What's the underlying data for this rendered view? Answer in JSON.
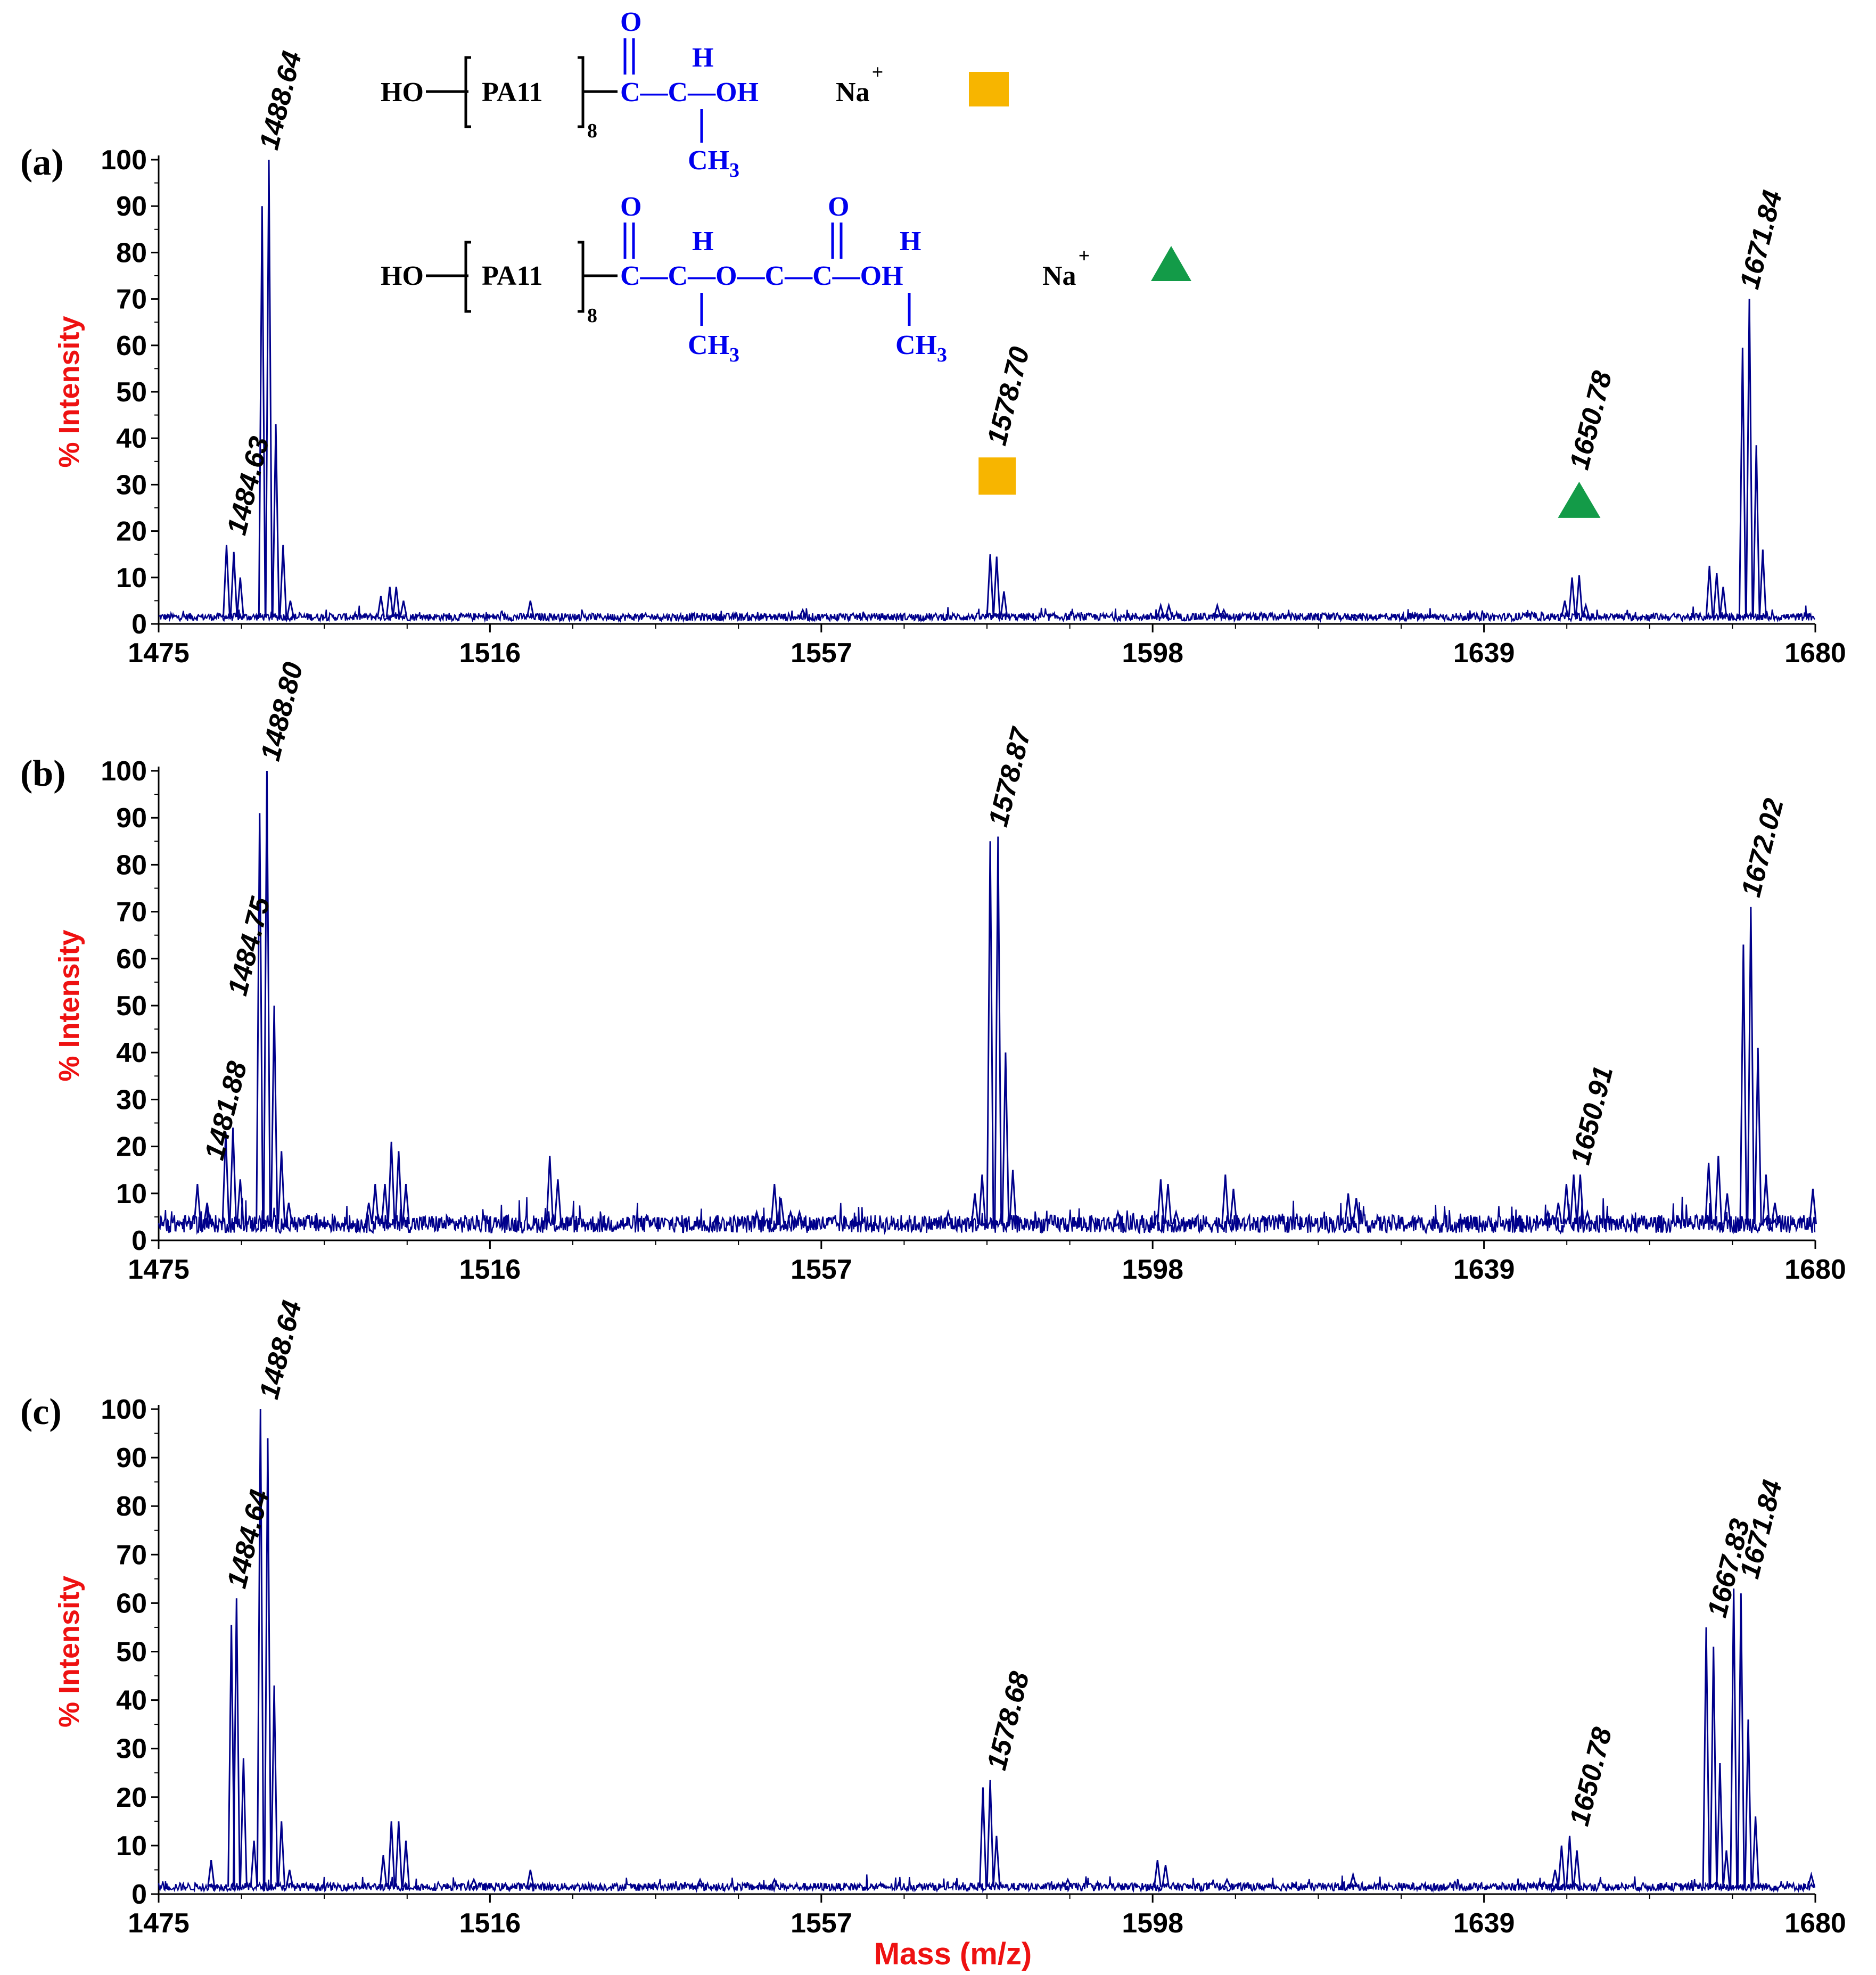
{
  "figure": {
    "x_axis_label": "Mass (m/z)",
    "y_axis_label": "% Intensity",
    "legend_structures": [
      {
        "marker": "square",
        "marker_color": "#f7b500",
        "prefix": "HO",
        "bracket_text": "PA11",
        "repeat": "8",
        "chain_text": "C—C—OH",
        "top_atoms": [
          "O",
          "H"
        ],
        "bottom_group": "CH",
        "bottom_group_sub": "3",
        "counter_ion": "Na",
        "counter_ion_charge": "+"
      },
      {
        "marker": "triangle",
        "marker_color": "#139b48",
        "prefix": "HO",
        "bracket_text": "PA11",
        "repeat": "8",
        "chain_text": "C—C—O—C—C—OH",
        "top_atoms": [
          "O",
          "H",
          "O",
          "H"
        ],
        "bottom_group": "CH",
        "bottom_group_sub": "3",
        "counter_ion": "Na",
        "counter_ion_charge": "+"
      }
    ]
  },
  "chart_data": [
    {
      "type": "line",
      "panel": "(a)",
      "xlim": [
        1475,
        1680
      ],
      "ylim": [
        0,
        100
      ],
      "x_ticks": [
        1475,
        1516,
        1557,
        1598,
        1639,
        1680
      ],
      "y_ticks": [
        0,
        10,
        20,
        30,
        40,
        50,
        60,
        70,
        80,
        90,
        100
      ],
      "line_color": "#00008b",
      "baseline": 1.5,
      "peaks": [
        [
          1483.4,
          17
        ],
        [
          1484.3,
          15.5
        ],
        [
          1485.1,
          10
        ],
        [
          1487.8,
          90
        ],
        [
          1488.64,
          100
        ],
        [
          1489.5,
          43
        ],
        [
          1490.4,
          17
        ],
        [
          1491.3,
          5
        ],
        [
          1502.5,
          6
        ],
        [
          1503.6,
          8
        ],
        [
          1504.4,
          8
        ],
        [
          1505.3,
          5
        ],
        [
          1521.0,
          5
        ],
        [
          1554.7,
          3
        ],
        [
          1577.9,
          15
        ],
        [
          1578.7,
          14.5
        ],
        [
          1579.6,
          7
        ],
        [
          1599.0,
          4
        ],
        [
          1600.0,
          4
        ],
        [
          1606.0,
          4
        ],
        [
          1606.8,
          3
        ],
        [
          1623.0,
          2
        ],
        [
          1649.0,
          5
        ],
        [
          1649.9,
          10
        ],
        [
          1650.78,
          10.5
        ],
        [
          1651.6,
          4
        ],
        [
          1666.9,
          12.5
        ],
        [
          1667.8,
          11
        ],
        [
          1668.6,
          8
        ],
        [
          1671.0,
          59.5
        ],
        [
          1671.84,
          70
        ],
        [
          1672.7,
          38.5
        ],
        [
          1673.5,
          16
        ]
      ],
      "annotations": [
        {
          "x": 1484.63,
          "y": 17,
          "label": "1484.63"
        },
        {
          "x": 1488.64,
          "y": 100,
          "label": "1488.64"
        },
        {
          "x": 1578.7,
          "y": 26,
          "label": "1578.70",
          "marker": "square"
        },
        {
          "x": 1650.78,
          "y": 21,
          "label": "1650.78",
          "marker": "triangle"
        },
        {
          "x": 1671.84,
          "y": 70,
          "label": "1671.84"
        }
      ]
    },
    {
      "type": "line",
      "panel": "(b)",
      "xlim": [
        1475,
        1680
      ],
      "ylim": [
        0,
        100
      ],
      "x_ticks": [
        1475,
        1516,
        1557,
        1598,
        1639,
        1680
      ],
      "y_ticks": [
        0,
        10,
        20,
        30,
        40,
        50,
        60,
        70,
        80,
        90,
        100
      ],
      "line_color": "#00008b",
      "baseline": 3.5,
      "peaks": [
        [
          1479.8,
          12
        ],
        [
          1481.0,
          8
        ],
        [
          1483.3,
          23
        ],
        [
          1484.2,
          24
        ],
        [
          1485.1,
          13
        ],
        [
          1487.5,
          91
        ],
        [
          1488.4,
          100
        ],
        [
          1489.3,
          50
        ],
        [
          1490.2,
          19
        ],
        [
          1491.1,
          8
        ],
        [
          1501.0,
          8
        ],
        [
          1501.8,
          12
        ],
        [
          1503.0,
          12
        ],
        [
          1503.8,
          21
        ],
        [
          1504.7,
          19
        ],
        [
          1505.6,
          12
        ],
        [
          1523.4,
          18
        ],
        [
          1524.4,
          13
        ],
        [
          1544.0,
          5
        ],
        [
          1549.0,
          6
        ],
        [
          1551.2,
          12
        ],
        [
          1552.0,
          9
        ],
        [
          1553.2,
          6
        ],
        [
          1554.3,
          6
        ],
        [
          1572.7,
          6
        ],
        [
          1576.0,
          10
        ],
        [
          1576.9,
          14
        ],
        [
          1577.9,
          85
        ],
        [
          1578.87,
          86
        ],
        [
          1579.8,
          40
        ],
        [
          1580.7,
          15
        ],
        [
          1593.7,
          6
        ],
        [
          1599.0,
          13
        ],
        [
          1599.9,
          12
        ],
        [
          1600.9,
          6
        ],
        [
          1607.0,
          14
        ],
        [
          1608.0,
          11
        ],
        [
          1622.2,
          10
        ],
        [
          1623.2,
          9
        ],
        [
          1646.9,
          6
        ],
        [
          1648.2,
          8
        ],
        [
          1649.2,
          12
        ],
        [
          1650.1,
          14
        ],
        [
          1650.91,
          14
        ],
        [
          1651.8,
          6
        ],
        [
          1666.8,
          16.5
        ],
        [
          1668.0,
          18
        ],
        [
          1669.1,
          10
        ],
        [
          1671.1,
          63
        ],
        [
          1672.02,
          71
        ],
        [
          1672.9,
          41
        ],
        [
          1673.9,
          14
        ],
        [
          1675.0,
          8
        ],
        [
          1679.7,
          11
        ]
      ],
      "annotations": [
        {
          "x": 1481.88,
          "y": 15,
          "label": "1481.88"
        },
        {
          "x": 1484.75,
          "y": 50,
          "label": "1484.75"
        },
        {
          "x": 1488.8,
          "y": 100,
          "label": "1488.80"
        },
        {
          "x": 1578.87,
          "y": 86,
          "label": "1578.87"
        },
        {
          "x": 1650.91,
          "y": 14,
          "label": "1650.91"
        },
        {
          "x": 1672.02,
          "y": 71,
          "label": "1672.02"
        }
      ]
    },
    {
      "type": "line",
      "panel": "(c)",
      "xlim": [
        1475,
        1680
      ],
      "ylim": [
        0,
        100
      ],
      "x_ticks": [
        1475,
        1516,
        1557,
        1598,
        1639,
        1680
      ],
      "y_ticks": [
        0,
        10,
        20,
        30,
        40,
        50,
        60,
        70,
        80,
        90,
        100
      ],
      "line_color": "#00008b",
      "baseline": 1.5,
      "peaks": [
        [
          1481.5,
          7
        ],
        [
          1484.0,
          55.5
        ],
        [
          1484.64,
          61
        ],
        [
          1485.5,
          28
        ],
        [
          1486.8,
          11
        ],
        [
          1487.6,
          100
        ],
        [
          1488.5,
          94
        ],
        [
          1489.3,
          43
        ],
        [
          1490.2,
          15
        ],
        [
          1491.2,
          5
        ],
        [
          1502.8,
          8
        ],
        [
          1503.8,
          15
        ],
        [
          1504.7,
          15
        ],
        [
          1505.6,
          11
        ],
        [
          1514.0,
          3
        ],
        [
          1521.0,
          5
        ],
        [
          1542.0,
          3
        ],
        [
          1551.2,
          3
        ],
        [
          1577.0,
          22
        ],
        [
          1577.9,
          23.5
        ],
        [
          1578.68,
          12
        ],
        [
          1587.5,
          3
        ],
        [
          1598.6,
          7
        ],
        [
          1599.6,
          6
        ],
        [
          1607.2,
          3
        ],
        [
          1622.8,
          4
        ],
        [
          1647.8,
          5
        ],
        [
          1648.6,
          10
        ],
        [
          1649.6,
          12
        ],
        [
          1650.5,
          9
        ],
        [
          1666.5,
          55
        ],
        [
          1667.4,
          51
        ],
        [
          1668.2,
          27
        ],
        [
          1669.0,
          9
        ],
        [
          1669.9,
          63
        ],
        [
          1670.8,
          62
        ],
        [
          1671.7,
          36
        ],
        [
          1672.6,
          16
        ],
        [
          1679.5,
          4
        ]
      ],
      "annotations": [
        {
          "x": 1484.64,
          "y": 61,
          "label": "1484.64"
        },
        {
          "x": 1488.64,
          "y": 100,
          "label": "1488.64"
        },
        {
          "x": 1578.68,
          "y": 23.5,
          "label": "1578.68"
        },
        {
          "x": 1650.78,
          "y": 12,
          "label": "1650.78"
        },
        {
          "x": 1667.83,
          "y": 55,
          "label": "1667.83"
        },
        {
          "x": 1671.84,
          "y": 63,
          "label": "1671.84"
        }
      ]
    }
  ]
}
